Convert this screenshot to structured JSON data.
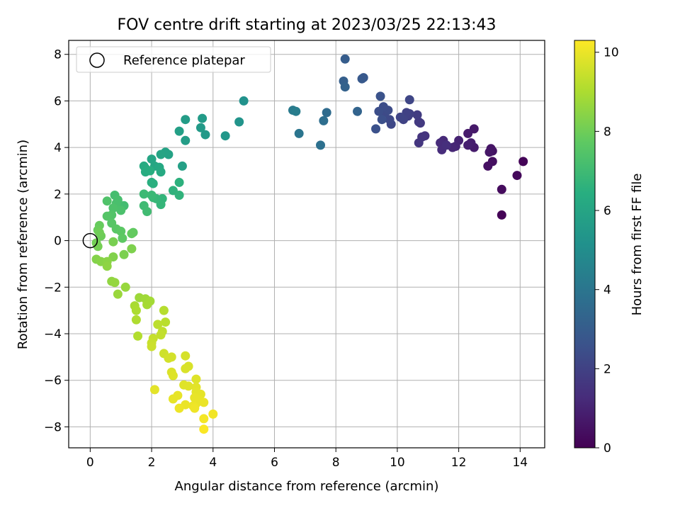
{
  "chart_data": {
    "type": "scatter",
    "title": "FOV centre drift starting at 2023/03/25 22:13:43",
    "xlabel": "Angular distance from reference (arcmin)",
    "ylabel": "Rotation from reference (arcmin)",
    "xlim": [
      -0.7,
      14.8
    ],
    "ylim": [
      -8.9,
      8.6
    ],
    "x_ticks": [
      0,
      2,
      4,
      6,
      8,
      10,
      12,
      14
    ],
    "y_ticks": [
      -8,
      -6,
      -4,
      -2,
      0,
      2,
      4,
      6,
      8
    ],
    "grid": true,
    "legend": {
      "placement": "top-left",
      "entries": [
        "Reference platepar"
      ]
    },
    "reference_point": {
      "x": 0,
      "y": 0
    },
    "colorbar": {
      "label": "Hours from first FF file",
      "colormap": "viridis",
      "range": [
        0,
        10.3
      ],
      "ticks": [
        0,
        2,
        4,
        6,
        8,
        10
      ]
    },
    "series": [
      {
        "marker": "filled-circle",
        "points": [
          {
            "x": 13.4,
            "y": 1.1,
            "c": 0.05
          },
          {
            "x": 14.1,
            "y": 3.4,
            "c": 0.1
          },
          {
            "x": 13.9,
            "y": 2.8,
            "c": 0.2
          },
          {
            "x": 13.4,
            "y": 2.2,
            "c": 0.3
          },
          {
            "x": 13.1,
            "y": 3.4,
            "c": 0.4
          },
          {
            "x": 12.95,
            "y": 3.2,
            "c": 0.45
          },
          {
            "x": 13.1,
            "y": 3.85,
            "c": 0.5
          },
          {
            "x": 13.05,
            "y": 3.95,
            "c": 0.55
          },
          {
            "x": 13.0,
            "y": 3.8,
            "c": 0.6
          },
          {
            "x": 12.5,
            "y": 4.8,
            "c": 0.7
          },
          {
            "x": 12.3,
            "y": 4.6,
            "c": 0.75
          },
          {
            "x": 12.5,
            "y": 4.0,
            "c": 0.8
          },
          {
            "x": 12.4,
            "y": 4.2,
            "c": 0.85
          },
          {
            "x": 12.3,
            "y": 4.1,
            "c": 0.9
          },
          {
            "x": 12.0,
            "y": 4.3,
            "c": 1.0
          },
          {
            "x": 11.9,
            "y": 4.05,
            "c": 1.05
          },
          {
            "x": 11.8,
            "y": 4.0,
            "c": 1.1
          },
          {
            "x": 11.5,
            "y": 4.3,
            "c": 1.2
          },
          {
            "x": 11.4,
            "y": 4.2,
            "c": 1.25
          },
          {
            "x": 11.45,
            "y": 3.9,
            "c": 1.3
          },
          {
            "x": 11.6,
            "y": 4.1,
            "c": 1.35
          },
          {
            "x": 10.9,
            "y": 4.5,
            "c": 1.5
          },
          {
            "x": 10.8,
            "y": 4.45,
            "c": 1.55
          },
          {
            "x": 10.7,
            "y": 4.2,
            "c": 1.6
          },
          {
            "x": 10.75,
            "y": 5.05,
            "c": 1.7
          },
          {
            "x": 10.7,
            "y": 5.1,
            "c": 1.75
          },
          {
            "x": 10.65,
            "y": 5.4,
            "c": 1.8
          },
          {
            "x": 10.4,
            "y": 5.45,
            "c": 1.9
          },
          {
            "x": 10.35,
            "y": 5.35,
            "c": 1.95
          },
          {
            "x": 10.3,
            "y": 5.5,
            "c": 2.0
          },
          {
            "x": 10.2,
            "y": 5.2,
            "c": 2.05
          },
          {
            "x": 10.1,
            "y": 5.3,
            "c": 2.1
          },
          {
            "x": 10.4,
            "y": 6.05,
            "c": 2.15
          },
          {
            "x": 9.8,
            "y": 5.0,
            "c": 2.2
          },
          {
            "x": 9.75,
            "y": 5.2,
            "c": 2.25
          },
          {
            "x": 9.6,
            "y": 5.5,
            "c": 2.3
          },
          {
            "x": 9.7,
            "y": 5.6,
            "c": 2.35
          },
          {
            "x": 9.55,
            "y": 5.75,
            "c": 2.4
          },
          {
            "x": 9.4,
            "y": 5.55,
            "c": 2.45
          },
          {
            "x": 9.5,
            "y": 5.2,
            "c": 2.5
          },
          {
            "x": 9.3,
            "y": 4.8,
            "c": 2.55
          },
          {
            "x": 9.45,
            "y": 6.2,
            "c": 2.6
          },
          {
            "x": 8.9,
            "y": 7.0,
            "c": 2.8
          },
          {
            "x": 8.85,
            "y": 6.95,
            "c": 2.85
          },
          {
            "x": 8.3,
            "y": 7.8,
            "c": 3.0
          },
          {
            "x": 8.25,
            "y": 6.85,
            "c": 3.1
          },
          {
            "x": 8.3,
            "y": 6.6,
            "c": 3.2
          },
          {
            "x": 8.7,
            "y": 5.55,
            "c": 3.3
          },
          {
            "x": 7.7,
            "y": 5.5,
            "c": 3.6
          },
          {
            "x": 7.6,
            "y": 5.15,
            "c": 3.7
          },
          {
            "x": 7.5,
            "y": 4.1,
            "c": 3.8
          },
          {
            "x": 6.8,
            "y": 4.6,
            "c": 4.0
          },
          {
            "x": 6.6,
            "y": 5.6,
            "c": 4.2
          },
          {
            "x": 6.7,
            "y": 5.55,
            "c": 4.3
          },
          {
            "x": 5.0,
            "y": 6.0,
            "c": 5.2
          },
          {
            "x": 4.85,
            "y": 5.1,
            "c": 5.3
          },
          {
            "x": 4.4,
            "y": 4.5,
            "c": 5.4
          },
          {
            "x": 3.75,
            "y": 4.55,
            "c": 5.5
          },
          {
            "x": 3.6,
            "y": 4.85,
            "c": 5.55
          },
          {
            "x": 3.65,
            "y": 5.25,
            "c": 5.6
          },
          {
            "x": 3.1,
            "y": 5.2,
            "c": 5.65
          },
          {
            "x": 3.1,
            "y": 4.3,
            "c": 5.7
          },
          {
            "x": 2.9,
            "y": 4.7,
            "c": 5.75
          },
          {
            "x": 3.0,
            "y": 3.2,
            "c": 5.8
          },
          {
            "x": 2.55,
            "y": 3.7,
            "c": 5.9
          },
          {
            "x": 2.45,
            "y": 3.8,
            "c": 5.95
          },
          {
            "x": 2.3,
            "y": 3.7,
            "c": 6.0
          },
          {
            "x": 2.0,
            "y": 3.5,
            "c": 6.05
          },
          {
            "x": 2.1,
            "y": 3.2,
            "c": 6.1
          },
          {
            "x": 2.25,
            "y": 3.15,
            "c": 6.15
          },
          {
            "x": 2.3,
            "y": 2.95,
            "c": 6.2
          },
          {
            "x": 1.8,
            "y": 3.1,
            "c": 6.25
          },
          {
            "x": 1.75,
            "y": 3.2,
            "c": 6.3
          },
          {
            "x": 1.8,
            "y": 2.95,
            "c": 6.35
          },
          {
            "x": 1.95,
            "y": 3.0,
            "c": 6.4
          },
          {
            "x": 2.0,
            "y": 2.5,
            "c": 6.45
          },
          {
            "x": 2.05,
            "y": 2.45,
            "c": 6.5
          },
          {
            "x": 2.9,
            "y": 2.5,
            "c": 6.55
          },
          {
            "x": 2.7,
            "y": 2.15,
            "c": 6.6
          },
          {
            "x": 2.9,
            "y": 1.95,
            "c": 6.65
          },
          {
            "x": 2.35,
            "y": 1.8,
            "c": 6.7
          },
          {
            "x": 2.3,
            "y": 1.55,
            "c": 6.75
          },
          {
            "x": 2.15,
            "y": 1.8,
            "c": 6.8
          },
          {
            "x": 2.05,
            "y": 1.85,
            "c": 6.85
          },
          {
            "x": 2.0,
            "y": 1.95,
            "c": 6.9
          },
          {
            "x": 1.75,
            "y": 2.0,
            "c": 6.95
          },
          {
            "x": 1.75,
            "y": 1.5,
            "c": 7.0
          },
          {
            "x": 1.85,
            "y": 1.25,
            "c": 7.05
          },
          {
            "x": 1.1,
            "y": 1.5,
            "c": 7.1
          },
          {
            "x": 0.8,
            "y": 1.95,
            "c": 7.15
          },
          {
            "x": 0.9,
            "y": 1.75,
            "c": 7.2
          },
          {
            "x": 0.85,
            "y": 1.6,
            "c": 7.25
          },
          {
            "x": 1.0,
            "y": 1.3,
            "c": 7.3
          },
          {
            "x": 0.75,
            "y": 1.4,
            "c": 7.35
          },
          {
            "x": 0.55,
            "y": 1.7,
            "c": 7.4
          },
          {
            "x": 0.7,
            "y": 1.1,
            "c": 7.45
          },
          {
            "x": 0.55,
            "y": 1.05,
            "c": 7.5
          },
          {
            "x": 0.7,
            "y": 0.75,
            "c": 7.55
          },
          {
            "x": 0.85,
            "y": 0.5,
            "c": 7.6
          },
          {
            "x": 1.0,
            "y": 0.4,
            "c": 7.65
          },
          {
            "x": 1.05,
            "y": 0.1,
            "c": 7.7
          },
          {
            "x": 1.4,
            "y": 0.35,
            "c": 7.75
          },
          {
            "x": 1.35,
            "y": 0.3,
            "c": 7.8
          },
          {
            "x": 0.3,
            "y": 0.65,
            "c": 7.85
          },
          {
            "x": 0.25,
            "y": 0.45,
            "c": 7.9
          },
          {
            "x": 0.35,
            "y": 0.2,
            "c": 7.95
          },
          {
            "x": 0.3,
            "y": 0.35,
            "c": 8.0
          },
          {
            "x": 0.2,
            "y": -0.1,
            "c": 8.05
          },
          {
            "x": 0.25,
            "y": -0.25,
            "c": 8.1
          },
          {
            "x": 0.75,
            "y": -0.05,
            "c": 8.15
          },
          {
            "x": 1.1,
            "y": -0.6,
            "c": 8.2
          },
          {
            "x": 1.35,
            "y": -0.35,
            "c": 8.25
          },
          {
            "x": 0.75,
            "y": -0.7,
            "c": 8.3
          },
          {
            "x": 0.2,
            "y": -0.8,
            "c": 8.35
          },
          {
            "x": 0.35,
            "y": -0.9,
            "c": 8.4
          },
          {
            "x": 0.55,
            "y": -0.9,
            "c": 8.45
          },
          {
            "x": 0.55,
            "y": -1.1,
            "c": 8.5
          },
          {
            "x": 0.7,
            "y": -1.75,
            "c": 8.55
          },
          {
            "x": 0.8,
            "y": -1.8,
            "c": 8.6
          },
          {
            "x": 1.15,
            "y": -2.0,
            "c": 8.65
          },
          {
            "x": 0.9,
            "y": -2.3,
            "c": 8.7
          },
          {
            "x": 1.6,
            "y": -2.45,
            "c": 8.75
          },
          {
            "x": 1.8,
            "y": -2.5,
            "c": 8.8
          },
          {
            "x": 1.95,
            "y": -2.6,
            "c": 8.85
          },
          {
            "x": 1.85,
            "y": -2.75,
            "c": 8.9
          },
          {
            "x": 1.45,
            "y": -2.8,
            "c": 8.95
          },
          {
            "x": 1.5,
            "y": -3.0,
            "c": 9.0
          },
          {
            "x": 1.5,
            "y": -3.4,
            "c": 9.05
          },
          {
            "x": 1.55,
            "y": -4.1,
            "c": 9.1
          },
          {
            "x": 2.4,
            "y": -3.0,
            "c": 9.15
          },
          {
            "x": 2.45,
            "y": -3.5,
            "c": 9.2
          },
          {
            "x": 2.2,
            "y": -3.6,
            "c": 9.25
          },
          {
            "x": 2.35,
            "y": -3.9,
            "c": 9.3
          },
          {
            "x": 2.3,
            "y": -4.05,
            "c": 9.35
          },
          {
            "x": 2.05,
            "y": -4.2,
            "c": 9.4
          },
          {
            "x": 2.0,
            "y": -4.4,
            "c": 9.45
          },
          {
            "x": 2.0,
            "y": -4.55,
            "c": 9.5
          },
          {
            "x": 2.4,
            "y": -4.85,
            "c": 9.55
          },
          {
            "x": 2.55,
            "y": -5.05,
            "c": 9.6
          },
          {
            "x": 2.65,
            "y": -5.0,
            "c": 9.62
          },
          {
            "x": 3.1,
            "y": -4.95,
            "c": 9.65
          },
          {
            "x": 3.2,
            "y": -5.4,
            "c": 9.7
          },
          {
            "x": 3.1,
            "y": -5.5,
            "c": 9.72
          },
          {
            "x": 2.65,
            "y": -5.65,
            "c": 9.75
          },
          {
            "x": 2.7,
            "y": -5.8,
            "c": 9.78
          },
          {
            "x": 3.45,
            "y": -5.95,
            "c": 9.8
          },
          {
            "x": 3.05,
            "y": -6.2,
            "c": 9.82
          },
          {
            "x": 3.2,
            "y": -6.25,
            "c": 9.84
          },
          {
            "x": 3.45,
            "y": -6.3,
            "c": 9.86
          },
          {
            "x": 2.1,
            "y": -6.4,
            "c": 9.88
          },
          {
            "x": 3.45,
            "y": -6.5,
            "c": 9.9
          },
          {
            "x": 3.6,
            "y": -6.6,
            "c": 9.92
          },
          {
            "x": 2.85,
            "y": -6.65,
            "c": 9.94
          },
          {
            "x": 2.7,
            "y": -6.8,
            "c": 9.95
          },
          {
            "x": 3.4,
            "y": -6.75,
            "c": 9.96
          },
          {
            "x": 3.55,
            "y": -6.85,
            "c": 9.97
          },
          {
            "x": 3.45,
            "y": -7.0,
            "c": 9.98
          },
          {
            "x": 3.7,
            "y": -6.95,
            "c": 9.99
          },
          {
            "x": 3.1,
            "y": -7.05,
            "c": 10.0
          },
          {
            "x": 3.35,
            "y": -7.1,
            "c": 10.02
          },
          {
            "x": 2.9,
            "y": -7.2,
            "c": 10.05
          },
          {
            "x": 3.4,
            "y": -7.2,
            "c": 10.08
          },
          {
            "x": 4.0,
            "y": -7.45,
            "c": 10.1
          },
          {
            "x": 3.7,
            "y": -7.65,
            "c": 10.15
          },
          {
            "x": 3.7,
            "y": -8.1,
            "c": 10.25
          }
        ]
      }
    ]
  }
}
